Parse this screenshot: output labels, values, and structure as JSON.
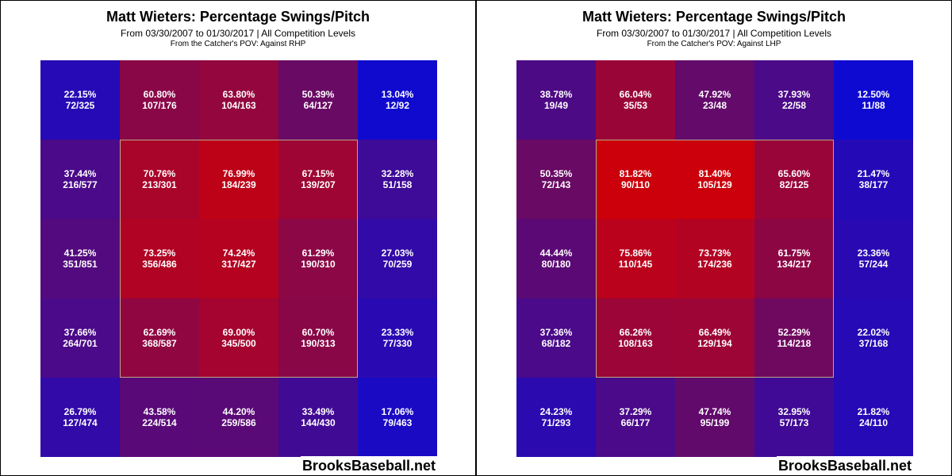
{
  "chart_data": [
    {
      "type": "heatmap",
      "title": "Matt Wieters: Percentage Swings/Pitch",
      "subtitle": "From 03/30/2007 to 01/30/2017 | All Competition Levels",
      "pov": "From the Catcher's POV:   Against RHP",
      "brand": "BrooksBaseball.net",
      "cells": [
        [
          {
            "pct": "22.15%",
            "frac": "72/325"
          },
          {
            "pct": "60.80%",
            "frac": "107/176"
          },
          {
            "pct": "63.80%",
            "frac": "104/163"
          },
          {
            "pct": "50.39%",
            "frac": "64/127"
          },
          {
            "pct": "13.04%",
            "frac": "12/92"
          }
        ],
        [
          {
            "pct": "37.44%",
            "frac": "216/577"
          },
          {
            "pct": "70.76%",
            "frac": "213/301"
          },
          {
            "pct": "76.99%",
            "frac": "184/239"
          },
          {
            "pct": "67.15%",
            "frac": "139/207"
          },
          {
            "pct": "32.28%",
            "frac": "51/158"
          }
        ],
        [
          {
            "pct": "41.25%",
            "frac": "351/851"
          },
          {
            "pct": "73.25%",
            "frac": "356/486"
          },
          {
            "pct": "74.24%",
            "frac": "317/427"
          },
          {
            "pct": "61.29%",
            "frac": "190/310"
          },
          {
            "pct": "27.03%",
            "frac": "70/259"
          }
        ],
        [
          {
            "pct": "37.66%",
            "frac": "264/701"
          },
          {
            "pct": "62.69%",
            "frac": "368/587"
          },
          {
            "pct": "69.00%",
            "frac": "345/500"
          },
          {
            "pct": "60.70%",
            "frac": "190/313"
          },
          {
            "pct": "23.33%",
            "frac": "77/330"
          }
        ],
        [
          {
            "pct": "26.79%",
            "frac": "127/474"
          },
          {
            "pct": "43.58%",
            "frac": "224/514"
          },
          {
            "pct": "44.20%",
            "frac": "259/586"
          },
          {
            "pct": "33.49%",
            "frac": "144/430"
          },
          {
            "pct": "17.06%",
            "frac": "79/463"
          }
        ]
      ]
    },
    {
      "type": "heatmap",
      "title": "Matt Wieters: Percentage Swings/Pitch",
      "subtitle": "From 03/30/2007 to 01/30/2017 | All Competition Levels",
      "pov": "From the Catcher's POV:   Against LHP",
      "brand": "BrooksBaseball.net",
      "cells": [
        [
          {
            "pct": "38.78%",
            "frac": "19/49"
          },
          {
            "pct": "66.04%",
            "frac": "35/53"
          },
          {
            "pct": "47.92%",
            "frac": "23/48"
          },
          {
            "pct": "37.93%",
            "frac": "22/58"
          },
          {
            "pct": "12.50%",
            "frac": "11/88"
          }
        ],
        [
          {
            "pct": "50.35%",
            "frac": "72/143"
          },
          {
            "pct": "81.82%",
            "frac": "90/110"
          },
          {
            "pct": "81.40%",
            "frac": "105/129"
          },
          {
            "pct": "65.60%",
            "frac": "82/125"
          },
          {
            "pct": "21.47%",
            "frac": "38/177"
          }
        ],
        [
          {
            "pct": "44.44%",
            "frac": "80/180"
          },
          {
            "pct": "75.86%",
            "frac": "110/145"
          },
          {
            "pct": "73.73%",
            "frac": "174/236"
          },
          {
            "pct": "61.75%",
            "frac": "134/217"
          },
          {
            "pct": "23.36%",
            "frac": "57/244"
          }
        ],
        [
          {
            "pct": "37.36%",
            "frac": "68/182"
          },
          {
            "pct": "66.26%",
            "frac": "108/163"
          },
          {
            "pct": "66.49%",
            "frac": "129/194"
          },
          {
            "pct": "52.29%",
            "frac": "114/218"
          },
          {
            "pct": "22.02%",
            "frac": "37/168"
          }
        ],
        [
          {
            "pct": "24.23%",
            "frac": "71/293"
          },
          {
            "pct": "37.29%",
            "frac": "66/177"
          },
          {
            "pct": "47.74%",
            "frac": "95/199"
          },
          {
            "pct": "32.95%",
            "frac": "57/173"
          },
          {
            "pct": "21.82%",
            "frac": "24/110"
          }
        ]
      ]
    }
  ]
}
